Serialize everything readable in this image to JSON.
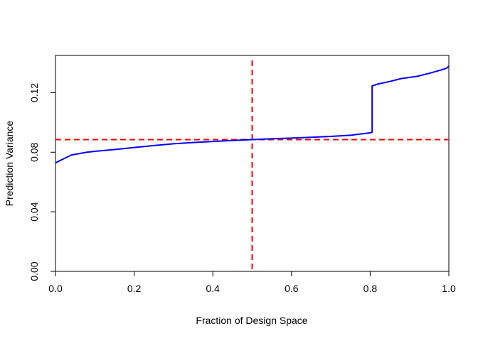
{
  "chart_data": {
    "type": "line",
    "title": "",
    "xlabel": "Fraction of Design Space",
    "ylabel": "Prediction Variance",
    "xlim": [
      0.0,
      1.0
    ],
    "ylim": [
      0.0,
      0.145
    ],
    "x_ticks": [
      0.0,
      0.2,
      0.4,
      0.6,
      0.8,
      1.0
    ],
    "x_tick_labels": [
      "0.0",
      "0.2",
      "0.4",
      "0.6",
      "0.8",
      "1.0"
    ],
    "y_ticks": [
      0.0,
      0.04,
      0.08,
      0.12
    ],
    "y_tick_labels": [
      "0.00",
      "0.04",
      "0.08",
      "0.12"
    ],
    "grid": false,
    "series": [
      {
        "color": "#0000ff",
        "x": [
          0.0,
          0.01,
          0.02,
          0.03,
          0.04,
          0.05,
          0.08,
          0.1,
          0.15,
          0.2,
          0.25,
          0.3,
          0.35,
          0.4,
          0.45,
          0.5,
          0.55,
          0.6,
          0.65,
          0.7,
          0.75,
          0.8,
          0.805,
          0.805,
          0.82,
          0.85,
          0.88,
          0.92,
          0.95,
          0.98,
          0.995,
          1.0
        ],
        "y": [
          0.0728,
          0.0742,
          0.0755,
          0.0768,
          0.0781,
          0.0786,
          0.08,
          0.0806,
          0.0818,
          0.0832,
          0.0845,
          0.0857,
          0.0865,
          0.0872,
          0.0879,
          0.0885,
          0.089,
          0.0895,
          0.09,
          0.0906,
          0.0914,
          0.093,
          0.0935,
          0.1245,
          0.1258,
          0.1275,
          0.1295,
          0.131,
          0.133,
          0.1352,
          0.1365,
          0.1378
        ]
      }
    ],
    "reference_lines": {
      "color": "#ff0000",
      "style": "dashed",
      "vertical_x": 0.5,
      "horizontal_y": 0.0885
    }
  }
}
